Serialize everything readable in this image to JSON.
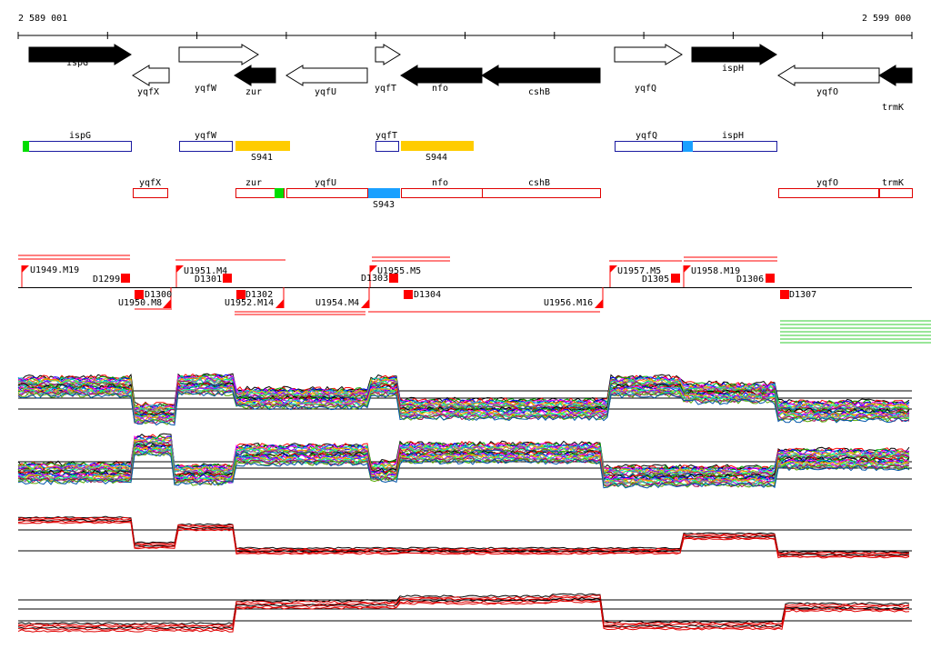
{
  "coordinates": {
    "start_label": "2 589 001",
    "end_label": "2 599 000"
  },
  "genes": [
    {
      "name": "ispG",
      "strand": "+",
      "style": "filled"
    },
    {
      "name": "yqfX",
      "strand": "-",
      "style": "open"
    },
    {
      "name": "yqfW",
      "strand": "+",
      "style": "open"
    },
    {
      "name": "zur",
      "strand": "-",
      "style": "filled"
    },
    {
      "name": "yqfU",
      "strand": "-",
      "style": "open"
    },
    {
      "name": "yqfT",
      "strand": "+",
      "style": "open"
    },
    {
      "name": "nfo",
      "strand": "-",
      "style": "filled"
    },
    {
      "name": "cshB",
      "strand": "-",
      "style": "filled"
    },
    {
      "name": "yqfQ",
      "strand": "+",
      "style": "open"
    },
    {
      "name": "ispH",
      "strand": "+",
      "style": "filled"
    },
    {
      "name": "yqfO",
      "strand": "-",
      "style": "open"
    },
    {
      "name": "trmK",
      "strand": "-",
      "style": "filled"
    }
  ],
  "plus_track_boxes": [
    {
      "label": "ispG"
    },
    {
      "label": "yqfW"
    },
    {
      "label": "S941"
    },
    {
      "label": "yqfT"
    },
    {
      "label": "S944"
    },
    {
      "label": "yqfQ"
    },
    {
      "label": "ispH"
    }
  ],
  "minus_track_boxes": [
    {
      "label": "yqfX"
    },
    {
      "label": "zur"
    },
    {
      "label": "yqfU"
    },
    {
      "label": "S943"
    },
    {
      "label": "nfo"
    },
    {
      "label": "cshB"
    },
    {
      "label": "yqfO"
    },
    {
      "label": "trmK"
    }
  ],
  "upstream_features": [
    "U1949.M19",
    "U1951.M4",
    "U1955.M5",
    "U1957.M5",
    "U1958.M19"
  ],
  "downstream_features": [
    "U1950.M8",
    "U1952.M14",
    "U1954.M4",
    "U1956.M16"
  ],
  "plus_terminators": [
    "D1299",
    "D1301",
    "D1303",
    "D1305",
    "D1306"
  ],
  "minus_terminators": [
    "D1300",
    "D1302",
    "D1304",
    "D1307"
  ],
  "colors": {
    "gene_fill": "#000000",
    "plus_box": "#1a1aa0",
    "minus_box": "#e00000",
    "s_rna_yellow": "#ffcc00",
    "s_rna_blue": "#1aa0ff",
    "marker_green": "#00dd00",
    "marker_blue": "#1aa0ff",
    "feature_red": "#ff0000",
    "downstream_green": "#33cc33",
    "profile_black": "#000000",
    "profile_red": "#e00000"
  }
}
